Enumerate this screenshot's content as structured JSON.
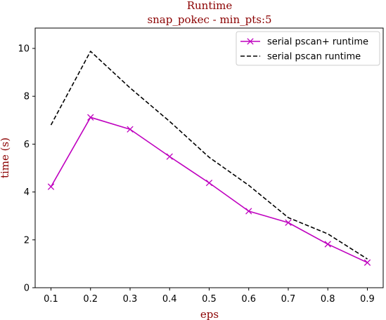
{
  "chart_data": {
    "type": "line",
    "title": "Runtime",
    "subtitle": "snap_pokec - min_pts:5",
    "xlabel": "eps",
    "ylabel": "time (s)",
    "x": [
      0.1,
      0.2,
      0.3,
      0.4,
      0.5,
      0.6,
      0.7,
      0.8,
      0.9
    ],
    "x_tick_labels": [
      "0.1",
      "0.2",
      "0.3",
      "0.4",
      "0.5",
      "0.6",
      "0.7",
      "0.8",
      "0.9"
    ],
    "y_ticks": [
      0,
      2,
      4,
      6,
      8,
      10
    ],
    "y_tick_labels": [
      "0",
      "2",
      "4",
      "6",
      "8",
      "10"
    ],
    "xlim": [
      0.06,
      0.94
    ],
    "ylim": [
      0,
      10.85
    ],
    "grid": false,
    "legend_position": "top-right",
    "series": [
      {
        "name": "serial pscan+ runtime",
        "values": [
          4.22,
          7.12,
          6.62,
          5.48,
          4.38,
          3.2,
          2.72,
          1.82,
          1.05
        ],
        "color": "#bf00bf",
        "style": "solid",
        "marker": "x"
      },
      {
        "name": "serial pscan runtime",
        "values": [
          6.8,
          9.88,
          8.35,
          6.95,
          5.45,
          4.28,
          2.93,
          2.25,
          1.2
        ],
        "color": "#000000",
        "style": "dashed",
        "marker": "none"
      }
    ],
    "title_color": "#8b0000",
    "label_color": "#8b0000"
  }
}
